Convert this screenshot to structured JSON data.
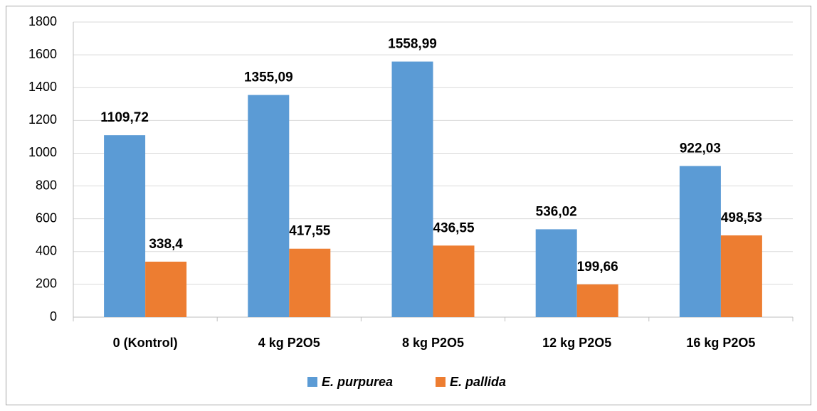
{
  "chart_data": {
    "type": "bar",
    "categories": [
      "0 (Kontrol)",
      "4 kg P2O5",
      "8 kg P2O5",
      "12 kg P2O5",
      "16 kg P2O5"
    ],
    "series": [
      {
        "name": "E. purpurea",
        "color": "#5b9bd5",
        "values": [
          1109.72,
          1355.09,
          1558.99,
          536.02,
          922.03
        ],
        "value_labels": [
          "1109,72",
          "1355,09",
          "1558,99",
          "536,02",
          "922,03"
        ]
      },
      {
        "name": "E. pallida",
        "color": "#ed7d31",
        "values": [
          338.4,
          417.55,
          436.55,
          199.66,
          498.53
        ],
        "value_labels": [
          "338,4",
          "417,55",
          "436,55",
          "199,66",
          "498,53"
        ]
      }
    ],
    "ylim": [
      0,
      1800
    ],
    "yticks": [
      0,
      200,
      400,
      600,
      800,
      1000,
      1200,
      1400,
      1600,
      1800
    ],
    "grid": true,
    "legend": "bottom"
  }
}
